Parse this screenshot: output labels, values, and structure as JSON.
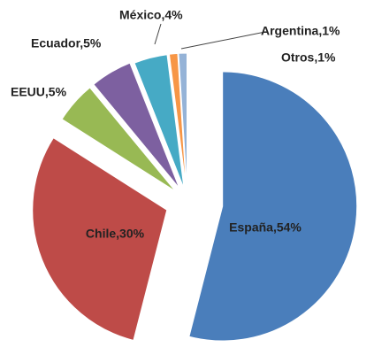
{
  "chart_data": {
    "type": "pie",
    "categories": [
      "España",
      "Chile",
      "EEUU",
      "Ecuador",
      "México",
      "Argentina",
      "Otros"
    ],
    "values": [
      54,
      30,
      5,
      5,
      4,
      1,
      1
    ],
    "value_labels": [
      "España,54%",
      "Chile,30%",
      "EEUU,5%",
      "Ecuador,5%",
      "México,4%",
      "Argentina,1%",
      "Otros,1%"
    ],
    "colors": [
      "#4a7ebb",
      "#be4b48",
      "#98b954",
      "#7d60a0",
      "#46aac5",
      "#f79646",
      "#95b3d7"
    ]
  }
}
